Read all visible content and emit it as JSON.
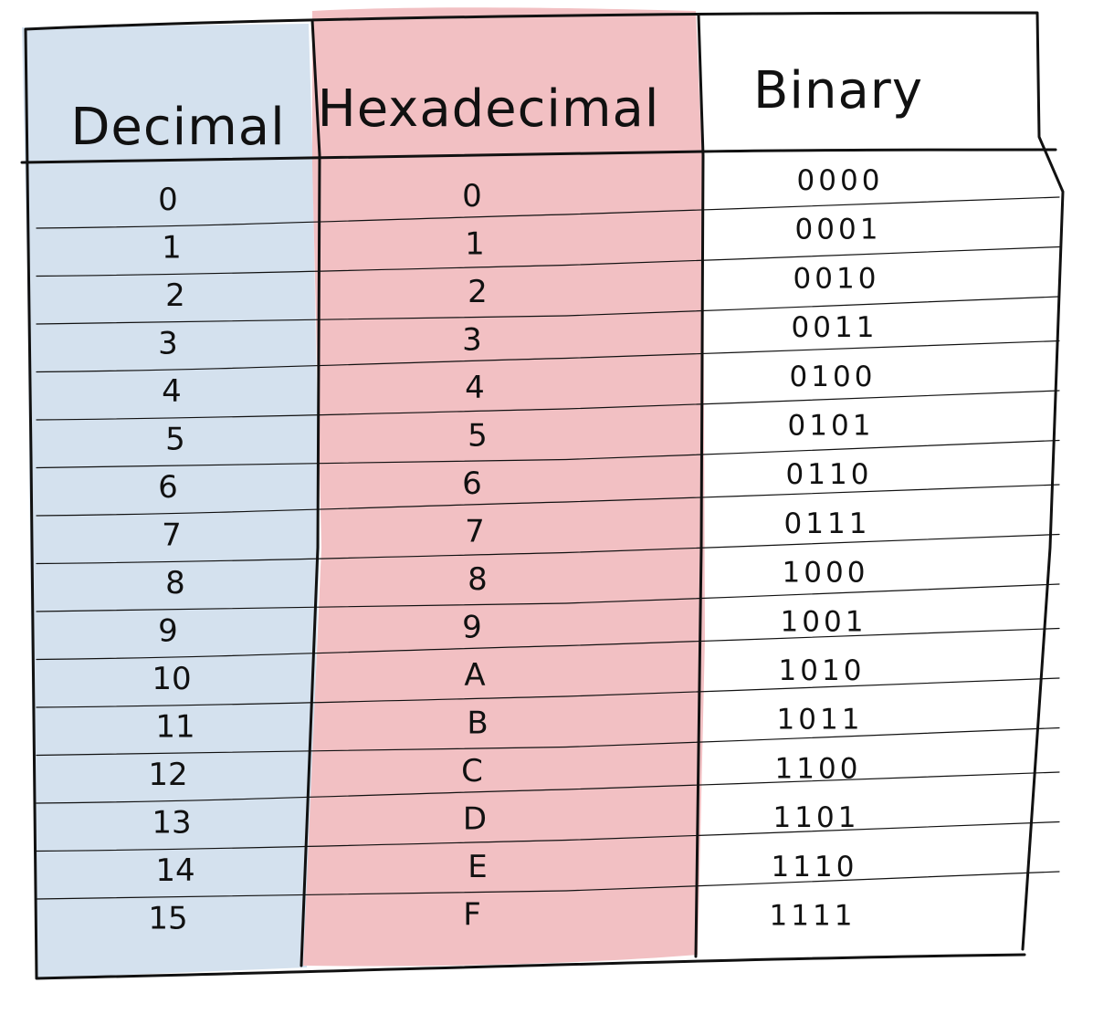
{
  "table": {
    "headers": {
      "decimal": "Decimal",
      "hexadecimal": "Hexadecimal",
      "binary": "Binary"
    },
    "rows": [
      {
        "decimal": "0",
        "hex": "0",
        "binary": "0000"
      },
      {
        "decimal": "1",
        "hex": "1",
        "binary": "0001"
      },
      {
        "decimal": "2",
        "hex": "2",
        "binary": "0010"
      },
      {
        "decimal": "3",
        "hex": "3",
        "binary": "0011"
      },
      {
        "decimal": "4",
        "hex": "4",
        "binary": "0100"
      },
      {
        "decimal": "5",
        "hex": "5",
        "binary": "0101"
      },
      {
        "decimal": "6",
        "hex": "6",
        "binary": "0110"
      },
      {
        "decimal": "7",
        "hex": "7",
        "binary": "0111"
      },
      {
        "decimal": "8",
        "hex": "8",
        "binary": "1000"
      },
      {
        "decimal": "9",
        "hex": "9",
        "binary": "1001"
      },
      {
        "decimal": "10",
        "hex": "A",
        "binary": "1010"
      },
      {
        "decimal": "11",
        "hex": "B",
        "binary": "1011"
      },
      {
        "decimal": "12",
        "hex": "C",
        "binary": "1100"
      },
      {
        "decimal": "13",
        "hex": "D",
        "binary": "1101"
      },
      {
        "decimal": "14",
        "hex": "E",
        "binary": "1110"
      },
      {
        "decimal": "15",
        "hex": "F",
        "binary": "1111"
      }
    ]
  },
  "colors": {
    "decimal_column": "#d4e1ee",
    "hexadecimal_column": "#f2c0c3",
    "binary_column": "#ffffff",
    "ink": "#111111"
  }
}
